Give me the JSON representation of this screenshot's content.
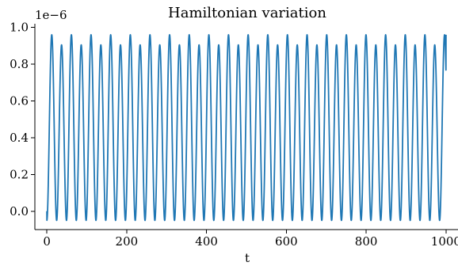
{
  "chart_data": {
    "type": "line",
    "title": "Hamiltonian variation",
    "xlabel": "t",
    "ylabel": "",
    "y_offset_label": "1e−6",
    "xlim": [
      -30,
      1030
    ],
    "ylim": [
      -0.1,
      1.02
    ],
    "x_ticks": [
      0,
      200,
      400,
      600,
      800,
      1000
    ],
    "x_tick_labels": [
      "0",
      "200",
      "400",
      "600",
      "800",
      "1000"
    ],
    "y_ticks": [
      0.0,
      0.2,
      0.4,
      0.6,
      0.8,
      1.0
    ],
    "y_tick_labels": [
      "0.0",
      "0.2",
      "0.4",
      "0.6",
      "0.8",
      "1.0"
    ],
    "grid": false,
    "legend": "none",
    "series": [
      {
        "color": "#1f77b4",
        "oscillation": {
          "t_start": 0,
          "t_end": 1000,
          "period": 24.6,
          "min_value": -0.05,
          "peak_high": 0.96,
          "peak_low": 0.905,
          "start_value": 0.0,
          "end_value": 0.96
        }
      }
    ]
  }
}
